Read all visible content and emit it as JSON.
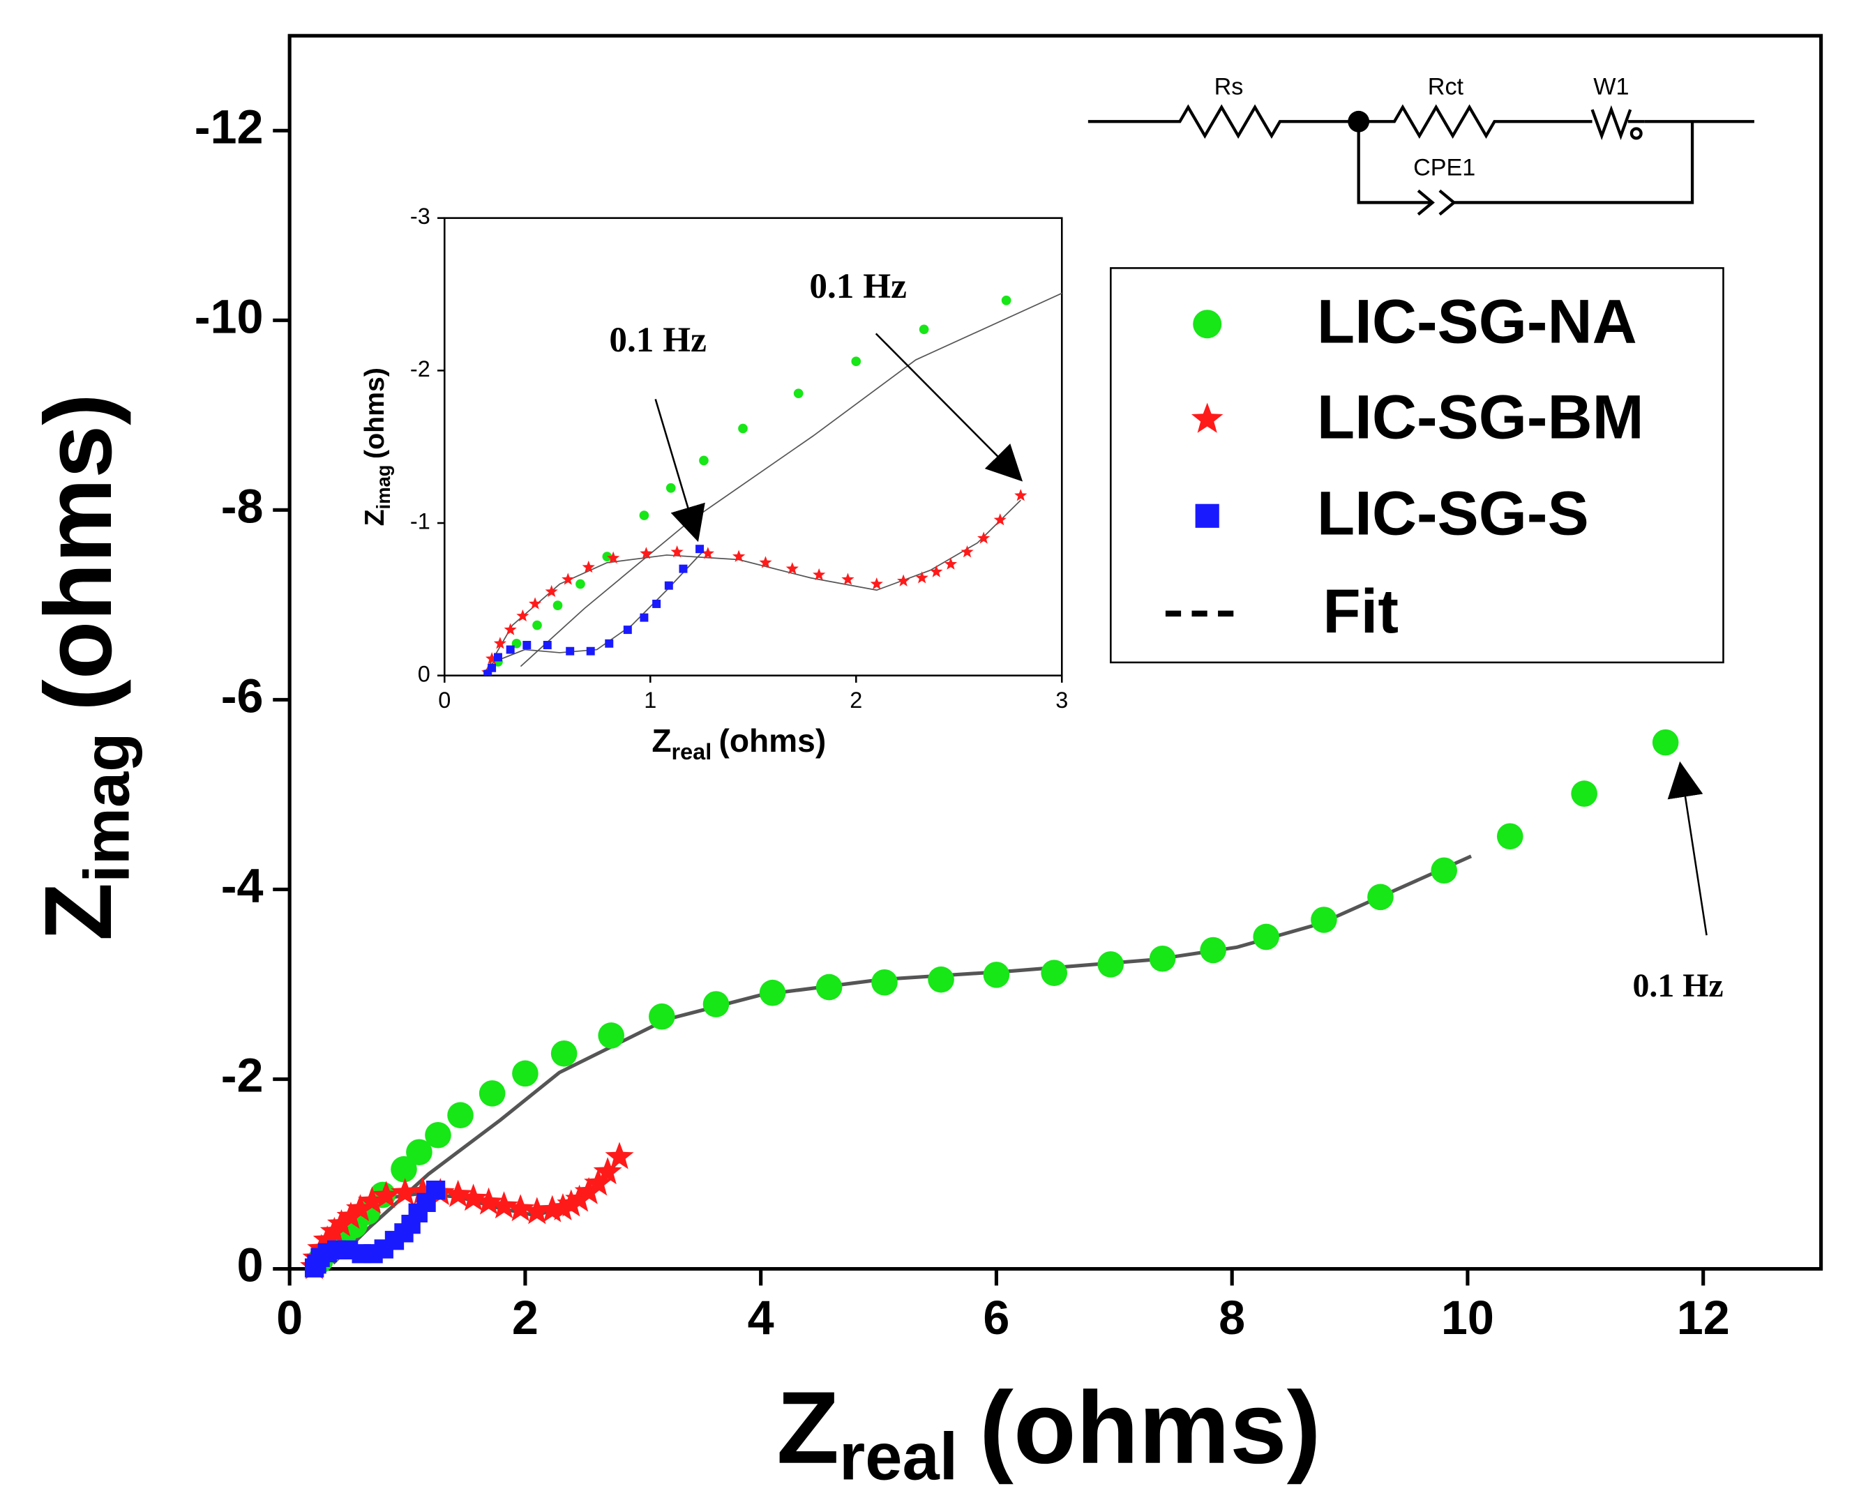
{
  "chart_data": {
    "type": "scatter",
    "x_label": {
      "text": "Z",
      "sub": "real",
      "unit": "(ohms)"
    },
    "y_label": {
      "text": "Z",
      "sub": "imag",
      "unit": "(ohms)"
    },
    "xlim": [
      0,
      13
    ],
    "xticks": [
      0,
      2,
      4,
      6,
      8,
      10,
      12
    ],
    "ylim": [
      0,
      -13
    ],
    "yticks": [
      0,
      -2,
      -4,
      -6,
      -8,
      -10,
      -12
    ],
    "legend": "upper right",
    "series": [
      {
        "name": "LIC-SG-NA",
        "color": "#17e617",
        "marker": "circle",
        "x": [
          0.26,
          0.35,
          0.45,
          0.55,
          0.66,
          0.79,
          0.97,
          1.1,
          1.26,
          1.45,
          1.72,
          2.0,
          2.33,
          2.73,
          3.16,
          3.62,
          4.1,
          4.58,
          5.05,
          5.53,
          6.0,
          6.49,
          6.97,
          7.41,
          7.84,
          8.29,
          8.78,
          9.26,
          9.8,
          10.36,
          10.99,
          11.68
        ],
        "values": [
          -0.09,
          -0.21,
          -0.33,
          -0.46,
          -0.6,
          -0.78,
          -1.05,
          -1.23,
          -1.41,
          -1.62,
          -1.85,
          -2.06,
          -2.27,
          -2.46,
          -2.66,
          -2.79,
          -2.91,
          -2.97,
          -3.02,
          -3.05,
          -3.1,
          -3.12,
          -3.21,
          -3.27,
          -3.36,
          -3.5,
          -3.68,
          -3.92,
          -4.2,
          -4.56,
          -5.01,
          -5.55
        ]
      },
      {
        "name": "LIC-SG-BM",
        "color": "#ff1a1a",
        "marker": "star",
        "x": [
          0.21,
          0.23,
          0.27,
          0.32,
          0.38,
          0.44,
          0.52,
          0.6,
          0.7,
          0.82,
          0.98,
          1.13,
          1.28,
          1.43,
          1.56,
          1.69,
          1.82,
          1.96,
          2.1,
          2.23,
          2.32,
          2.39,
          2.46,
          2.54,
          2.62,
          2.7,
          2.8
        ],
        "values": [
          -0.02,
          -0.11,
          -0.21,
          -0.3,
          -0.39,
          -0.47,
          -0.55,
          -0.63,
          -0.71,
          -0.77,
          -0.8,
          -0.81,
          -0.8,
          -0.78,
          -0.74,
          -0.7,
          -0.66,
          -0.63,
          -0.6,
          -0.62,
          -0.64,
          -0.68,
          -0.73,
          -0.81,
          -0.9,
          -1.02,
          -1.18
        ]
      },
      {
        "name": "LIC-SG-S",
        "color": "#1a1aff",
        "marker": "square",
        "x": [
          0.21,
          0.23,
          0.26,
          0.32,
          0.4,
          0.5,
          0.61,
          0.71,
          0.8,
          0.89,
          0.97,
          1.03,
          1.09,
          1.16,
          1.24
        ],
        "values": [
          -0.01,
          -0.05,
          -0.12,
          -0.17,
          -0.2,
          -0.2,
          -0.16,
          -0.16,
          -0.21,
          -0.3,
          -0.38,
          -0.47,
          -0.59,
          -0.7,
          -0.83
        ]
      }
    ],
    "fit": {
      "name": "Fit",
      "color": "#555555",
      "curves": [
        {
          "x": [
            0.37,
            0.68,
            1.18,
            1.79,
            2.29,
            3.2,
            4.01,
            5.02,
            6.13,
            7.34,
            8.04,
            8.75,
            10.03
          ],
          "values": [
            -0.06,
            -0.44,
            -1.0,
            -1.57,
            -2.07,
            -2.63,
            -2.89,
            -3.05,
            -3.14,
            -3.26,
            -3.39,
            -3.64,
            -4.35
          ]
        },
        {
          "x": [
            0.21,
            0.33,
            0.56,
            0.79,
            1.08,
            1.43,
            1.78,
            2.1,
            2.36,
            2.59,
            2.8
          ],
          "values": [
            -0.05,
            -0.33,
            -0.6,
            -0.74,
            -0.79,
            -0.76,
            -0.64,
            -0.56,
            -0.69,
            -0.87,
            -1.15
          ]
        },
        {
          "x": [
            0.19,
            0.24,
            0.39,
            0.56,
            0.74,
            0.91,
            1.08,
            1.26
          ],
          "values": [
            -0.02,
            -0.09,
            -0.17,
            -0.15,
            -0.17,
            -0.33,
            -0.56,
            -0.82
          ]
        }
      ]
    },
    "annotations": [
      "0.1 Hz"
    ],
    "inset": {
      "x_label": {
        "text": "Z",
        "sub": "real",
        "unit": "(ohms)"
      },
      "y_label": {
        "text": "Z",
        "sub": "imag",
        "unit": "(ohms)"
      },
      "xlim": [
        0,
        3
      ],
      "xticks": [
        0,
        1,
        2,
        3
      ],
      "ylim": [
        0,
        -3
      ],
      "yticks": [
        0,
        -1,
        -2,
        -3
      ],
      "annotations": [
        "0.1 Hz",
        "0.1 Hz"
      ]
    },
    "circuit_labels": [
      "Rs",
      "Rct",
      "W1",
      "CPE1"
    ]
  }
}
